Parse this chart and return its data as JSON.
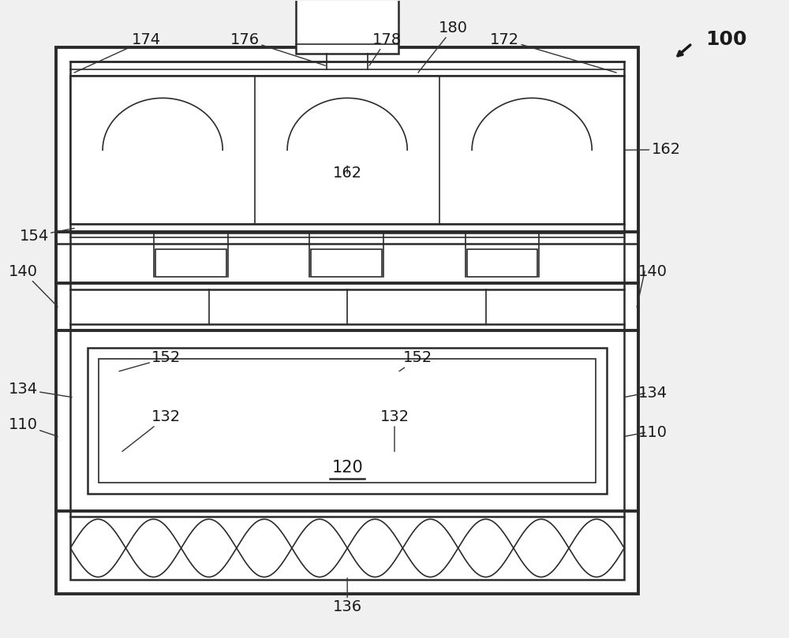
{
  "bg_color": "#f0f0f0",
  "line_color": "#2a2a2a",
  "lw_thin": 1.2,
  "lw_med": 1.8,
  "lw_thick": 2.8,
  "fig_w": 10.0,
  "fig_h": 8.09
}
